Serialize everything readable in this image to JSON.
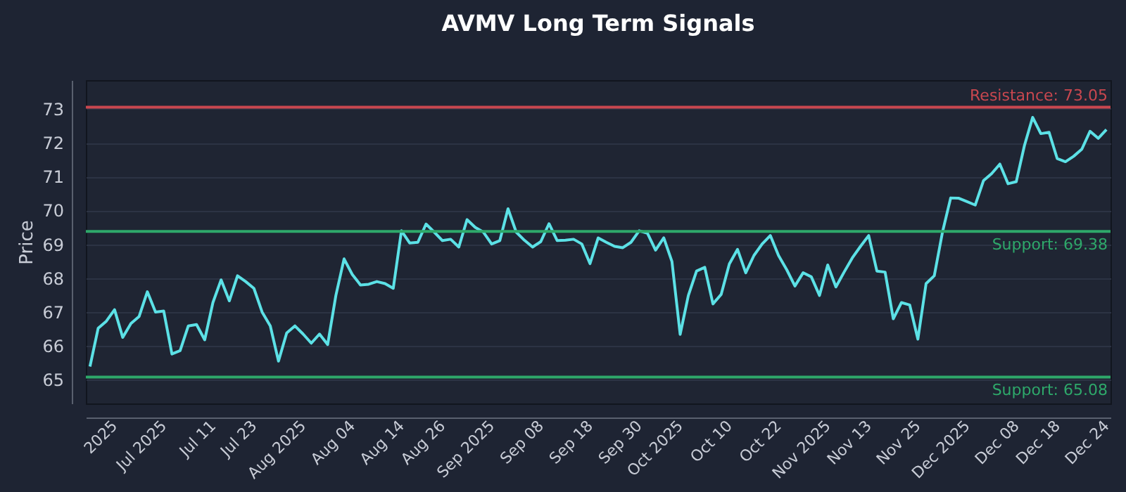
{
  "chart_data": {
    "type": "line",
    "title": "AVMV Long Term Signals",
    "ylabel": "Price",
    "categories": [
      null,
      null,
      null,
      "2025",
      null,
      null,
      null,
      null,
      null,
      "Jul 2025",
      null,
      null,
      null,
      null,
      null,
      "Jul 11",
      null,
      null,
      null,
      null,
      "Jul 23",
      null,
      null,
      null,
      null,
      null,
      "Aug 2025",
      null,
      null,
      null,
      null,
      null,
      "Aug 04",
      null,
      null,
      null,
      null,
      null,
      "Aug 14",
      null,
      null,
      null,
      null,
      "Aug 26",
      null,
      null,
      null,
      null,
      null,
      "Sep 2025",
      null,
      null,
      null,
      null,
      null,
      "Sep 08",
      null,
      null,
      null,
      null,
      null,
      "Sep 18",
      null,
      null,
      null,
      null,
      null,
      "Sep 30",
      null,
      null,
      null,
      null,
      "Oct 2025",
      null,
      null,
      null,
      null,
      null,
      "Oct 10",
      null,
      null,
      null,
      null,
      null,
      "Oct 22",
      null,
      null,
      null,
      null,
      null,
      "Nov 2025",
      null,
      null,
      null,
      null,
      "Nov 13",
      null,
      null,
      null,
      null,
      null,
      "Nov 25",
      null,
      null,
      null,
      null,
      null,
      "Dec 2025",
      null,
      null,
      null,
      null,
      null,
      "Dec 08",
      null,
      null,
      null,
      null,
      "Dec 18",
      null,
      null,
      null,
      null,
      null,
      "Dec 24"
    ],
    "series": [
      {
        "color": "#5ce1e6",
        "values": [
          65.39,
          66.52,
          66.73,
          67.07,
          66.25,
          66.66,
          66.87,
          67.6,
          67.0,
          67.03,
          65.76,
          65.86,
          66.59,
          66.63,
          66.18,
          67.28,
          67.95,
          67.33,
          68.07,
          67.9,
          67.7,
          67.0,
          66.59,
          65.55,
          66.38,
          66.59,
          66.35,
          66.08,
          66.35,
          66.04,
          67.49,
          68.57,
          68.11,
          67.8,
          67.82,
          67.9,
          67.84,
          67.7,
          69.4,
          69.04,
          69.06,
          69.6,
          69.36,
          69.11,
          69.15,
          68.92,
          69.73,
          69.5,
          69.36,
          69.01,
          69.11,
          70.05,
          69.36,
          69.12,
          68.92,
          69.08,
          69.61,
          69.11,
          69.12,
          69.15,
          69.01,
          68.43,
          69.19,
          69.06,
          68.94,
          68.9,
          69.06,
          69.4,
          69.33,
          68.83,
          69.19,
          68.49,
          66.34,
          67.49,
          68.21,
          68.32,
          67.24,
          67.52,
          68.42,
          68.85,
          68.16,
          68.67,
          69.01,
          69.26,
          68.67,
          68.25,
          67.77,
          68.16,
          68.04,
          67.49,
          68.39,
          67.74,
          68.18,
          68.6,
          68.94,
          69.26,
          68.21,
          68.18,
          66.8,
          67.28,
          67.21,
          66.2,
          67.84,
          68.07,
          69.36,
          70.37,
          70.36,
          70.26,
          70.16,
          70.88,
          71.09,
          71.37,
          70.79,
          70.85,
          71.92,
          72.75,
          72.27,
          72.31,
          71.53,
          71.44,
          71.6,
          71.81,
          72.34,
          72.13,
          72.39
        ]
      }
    ],
    "ylim": [
      64.3,
      73.85
    ],
    "yticks": [
      65,
      66,
      67,
      68,
      69,
      70,
      71,
      72,
      73
    ],
    "grid": "y",
    "ref_lines": [
      {
        "axis": "y",
        "value": 73.05,
        "label": "Resistance: 73.05",
        "color": "#c8474f"
      },
      {
        "axis": "y",
        "value": 69.38,
        "label": "Support: 69.38",
        "color": "#2ea86a"
      },
      {
        "axis": "y",
        "value": 65.08,
        "label": "Support: 65.08",
        "color": "#2ea86a"
      }
    ]
  }
}
